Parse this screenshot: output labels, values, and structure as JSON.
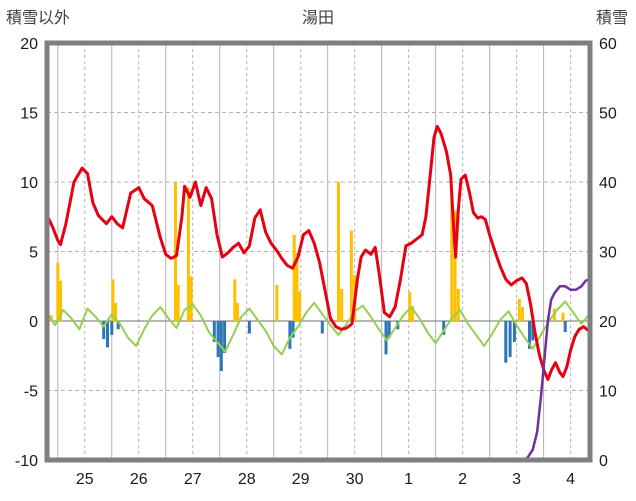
{
  "chart_data": {
    "type": "line",
    "title": "湯田",
    "left_axis": {
      "label": "積雪以外",
      "min": -10,
      "max": 20,
      "ticks": [
        20,
        15,
        10,
        5,
        0,
        -5,
        -10
      ]
    },
    "right_axis": {
      "label": "積雪",
      "min": 0,
      "max": 60,
      "ticks": [
        60,
        50,
        40,
        30,
        20,
        10,
        0
      ]
    },
    "x_axis": {
      "start": 24.8,
      "end": 34.86,
      "day_labels": [
        "25",
        "26",
        "27",
        "28",
        "29",
        "30",
        "1",
        "2",
        "3",
        "4"
      ],
      "label_positions": [
        25.5,
        26.5,
        27.5,
        28.5,
        29.5,
        30.5,
        31.5,
        32.5,
        33.5,
        34.5
      ]
    },
    "colors": {
      "red_line": "#e60012",
      "orange_bars": "#ffc000",
      "blue_bars": "#2e75b6",
      "green_line": "#92d050",
      "purple_line": "#7030a0",
      "frame": "#7f7f7f",
      "grid": "#b3b3b3",
      "zero_line": "#8c8c8c",
      "text": "#1a1a1a"
    },
    "series": [
      {
        "name": "orange_bars",
        "type": "bar",
        "axis": "left",
        "color": "#ffc000",
        "points": [
          [
            24.88,
            0.4
          ],
          [
            25.0,
            4.2
          ],
          [
            25.05,
            2.9
          ],
          [
            26.02,
            3.0
          ],
          [
            26.07,
            1.3
          ],
          [
            27.18,
            10.0
          ],
          [
            27.23,
            2.6
          ],
          [
            27.42,
            9.6
          ],
          [
            27.47,
            3.2
          ],
          [
            28.28,
            3.0
          ],
          [
            28.33,
            1.3
          ],
          [
            29.06,
            2.6
          ],
          [
            29.38,
            6.2
          ],
          [
            29.43,
            4.9
          ],
          [
            29.48,
            2.1
          ],
          [
            30.2,
            10.0
          ],
          [
            30.26,
            2.3
          ],
          [
            30.44,
            6.5
          ],
          [
            30.5,
            3.3
          ],
          [
            31.52,
            2.1
          ],
          [
            31.57,
            1.1
          ],
          [
            32.3,
            9.0
          ],
          [
            32.36,
            7.9
          ],
          [
            32.42,
            2.3
          ],
          [
            33.55,
            1.6
          ],
          [
            33.61,
            1.0
          ],
          [
            34.2,
            0.9
          ],
          [
            34.36,
            0.6
          ]
        ]
      },
      {
        "name": "blue_bars",
        "type": "bar",
        "axis": "left",
        "color": "#2e75b6",
        "points": [
          [
            25.85,
            -1.3
          ],
          [
            25.92,
            -1.9
          ],
          [
            26.0,
            -1.0
          ],
          [
            26.12,
            -0.6
          ],
          [
            27.9,
            -1.5
          ],
          [
            27.97,
            -2.6
          ],
          [
            28.03,
            -3.6
          ],
          [
            28.09,
            -2.3
          ],
          [
            28.55,
            -0.9
          ],
          [
            29.3,
            -2.0
          ],
          [
            29.36,
            -1.2
          ],
          [
            29.9,
            -0.9
          ],
          [
            31.08,
            -2.4
          ],
          [
            31.14,
            -1.2
          ],
          [
            31.3,
            -0.6
          ],
          [
            32.15,
            -1.0
          ],
          [
            33.3,
            -3.0
          ],
          [
            33.38,
            -2.6
          ],
          [
            33.46,
            -1.5
          ],
          [
            33.74,
            -2.0
          ],
          [
            33.8,
            -1.4
          ],
          [
            34.4,
            -0.8
          ]
        ]
      },
      {
        "name": "green_line",
        "type": "line",
        "axis": "left",
        "color": "#92d050",
        "width": 2,
        "points": [
          [
            24.8,
            0.6
          ],
          [
            24.95,
            -0.3
          ],
          [
            25.1,
            0.8
          ],
          [
            25.25,
            0.2
          ],
          [
            25.4,
            -0.6
          ],
          [
            25.55,
            0.9
          ],
          [
            25.7,
            0.3
          ],
          [
            25.85,
            -0.4
          ],
          [
            26.0,
            0.5
          ],
          [
            26.15,
            -0.2
          ],
          [
            26.3,
            -1.2
          ],
          [
            26.45,
            -1.8
          ],
          [
            26.6,
            -0.6
          ],
          [
            26.75,
            0.4
          ],
          [
            26.9,
            1.0
          ],
          [
            27.05,
            0.2
          ],
          [
            27.2,
            -0.5
          ],
          [
            27.35,
            0.8
          ],
          [
            27.5,
            1.2
          ],
          [
            27.65,
            0.4
          ],
          [
            27.8,
            -0.8
          ],
          [
            27.95,
            -1.5
          ],
          [
            28.1,
            -2.2
          ],
          [
            28.25,
            -1.0
          ],
          [
            28.4,
            0.3
          ],
          [
            28.55,
            0.9
          ],
          [
            28.7,
            0.1
          ],
          [
            28.85,
            -0.7
          ],
          [
            29.0,
            -1.8
          ],
          [
            29.15,
            -2.4
          ],
          [
            29.3,
            -1.2
          ],
          [
            29.45,
            -0.4
          ],
          [
            29.6,
            0.6
          ],
          [
            29.75,
            1.3
          ],
          [
            29.9,
            0.5
          ],
          [
            30.05,
            -0.3
          ],
          [
            30.2,
            -1.0
          ],
          [
            30.35,
            -0.2
          ],
          [
            30.5,
            0.7
          ],
          [
            30.65,
            1.1
          ],
          [
            30.8,
            0.3
          ],
          [
            30.95,
            -0.6
          ],
          [
            31.1,
            -1.4
          ],
          [
            31.25,
            -0.5
          ],
          [
            31.4,
            0.4
          ],
          [
            31.55,
            1.0
          ],
          [
            31.7,
            0.2
          ],
          [
            31.85,
            -0.8
          ],
          [
            32.0,
            -1.6
          ],
          [
            32.15,
            -0.7
          ],
          [
            32.3,
            0.2
          ],
          [
            32.45,
            0.8
          ],
          [
            32.6,
            -0.2
          ],
          [
            32.75,
            -1.0
          ],
          [
            32.9,
            -1.8
          ],
          [
            33.05,
            -0.9
          ],
          [
            33.2,
            0.1
          ],
          [
            33.35,
            0.7
          ],
          [
            33.5,
            -0.3
          ],
          [
            33.65,
            -1.2
          ],
          [
            33.8,
            -2.0
          ],
          [
            33.95,
            -1.0
          ],
          [
            34.1,
            0.0
          ],
          [
            34.25,
            0.8
          ],
          [
            34.4,
            1.4
          ],
          [
            34.55,
            0.6
          ],
          [
            34.7,
            -0.2
          ],
          [
            34.85,
            0.5
          ]
        ]
      },
      {
        "name": "red_line",
        "type": "line",
        "axis": "left",
        "color": "#e60012",
        "width": 3,
        "points": [
          [
            24.8,
            7.6
          ],
          [
            24.9,
            6.8
          ],
          [
            25.0,
            5.8
          ],
          [
            25.05,
            5.5
          ],
          [
            25.15,
            7.0
          ],
          [
            25.3,
            10.0
          ],
          [
            25.45,
            11.0
          ],
          [
            25.55,
            10.6
          ],
          [
            25.65,
            8.5
          ],
          [
            25.75,
            7.6
          ],
          [
            25.9,
            7.0
          ],
          [
            26.0,
            7.5
          ],
          [
            26.1,
            7.0
          ],
          [
            26.2,
            6.7
          ],
          [
            26.35,
            9.2
          ],
          [
            26.5,
            9.6
          ],
          [
            26.6,
            8.8
          ],
          [
            26.75,
            8.3
          ],
          [
            26.9,
            6.0
          ],
          [
            27.0,
            4.8
          ],
          [
            27.1,
            4.5
          ],
          [
            27.2,
            4.7
          ],
          [
            27.3,
            7.5
          ],
          [
            27.35,
            9.7
          ],
          [
            27.45,
            8.9
          ],
          [
            27.55,
            10.0
          ],
          [
            27.65,
            8.3
          ],
          [
            27.75,
            9.6
          ],
          [
            27.85,
            8.8
          ],
          [
            27.95,
            6.2
          ],
          [
            28.05,
            4.6
          ],
          [
            28.15,
            4.9
          ],
          [
            28.25,
            5.3
          ],
          [
            28.35,
            5.6
          ],
          [
            28.45,
            4.9
          ],
          [
            28.55,
            5.4
          ],
          [
            28.65,
            7.4
          ],
          [
            28.75,
            8.0
          ],
          [
            28.85,
            6.4
          ],
          [
            28.95,
            5.6
          ],
          [
            29.05,
            5.1
          ],
          [
            29.15,
            4.5
          ],
          [
            29.25,
            4.0
          ],
          [
            29.35,
            3.8
          ],
          [
            29.45,
            4.6
          ],
          [
            29.55,
            6.2
          ],
          [
            29.65,
            6.5
          ],
          [
            29.75,
            5.6
          ],
          [
            29.85,
            4.2
          ],
          [
            29.95,
            2.2
          ],
          [
            30.05,
            0.2
          ],
          [
            30.15,
            -0.4
          ],
          [
            30.25,
            -0.6
          ],
          [
            30.35,
            -0.5
          ],
          [
            30.45,
            -0.2
          ],
          [
            30.55,
            3.0
          ],
          [
            30.62,
            4.6
          ],
          [
            30.7,
            5.1
          ],
          [
            30.8,
            4.8
          ],
          [
            30.88,
            5.3
          ],
          [
            30.95,
            3.5
          ],
          [
            31.05,
            0.6
          ],
          [
            31.15,
            0.3
          ],
          [
            31.25,
            1.0
          ],
          [
            31.35,
            3.0
          ],
          [
            31.45,
            5.4
          ],
          [
            31.55,
            5.6
          ],
          [
            31.65,
            5.9
          ],
          [
            31.75,
            6.2
          ],
          [
            31.82,
            7.5
          ],
          [
            31.9,
            10.5
          ],
          [
            31.97,
            13.2
          ],
          [
            32.03,
            14.0
          ],
          [
            32.1,
            13.5
          ],
          [
            32.2,
            12.2
          ],
          [
            32.28,
            10.5
          ],
          [
            32.33,
            7.0
          ],
          [
            32.37,
            4.6
          ],
          [
            32.42,
            8.0
          ],
          [
            32.47,
            10.2
          ],
          [
            32.55,
            10.5
          ],
          [
            32.63,
            9.2
          ],
          [
            32.7,
            7.8
          ],
          [
            32.78,
            7.4
          ],
          [
            32.85,
            7.5
          ],
          [
            32.92,
            7.3
          ],
          [
            33.0,
            6.2
          ],
          [
            33.1,
            5.0
          ],
          [
            33.2,
            3.9
          ],
          [
            33.3,
            3.0
          ],
          [
            33.4,
            2.6
          ],
          [
            33.5,
            2.9
          ],
          [
            33.6,
            3.1
          ],
          [
            33.68,
            2.7
          ],
          [
            33.76,
            1.2
          ],
          [
            33.84,
            -0.8
          ],
          [
            33.92,
            -2.4
          ],
          [
            34.0,
            -3.5
          ],
          [
            34.08,
            -4.2
          ],
          [
            34.15,
            -3.5
          ],
          [
            34.22,
            -3.0
          ],
          [
            34.3,
            -3.7
          ],
          [
            34.36,
            -4.0
          ],
          [
            34.43,
            -3.3
          ],
          [
            34.5,
            -2.1
          ],
          [
            34.58,
            -1.1
          ],
          [
            34.66,
            -0.6
          ],
          [
            34.74,
            -0.4
          ],
          [
            34.8,
            -0.6
          ],
          [
            34.86,
            -0.8
          ]
        ]
      },
      {
        "name": "purple_line",
        "type": "line",
        "axis": "right",
        "color": "#7030a0",
        "width": 2.5,
        "points": [
          [
            24.8,
            0
          ],
          [
            33.6,
            0
          ],
          [
            33.7,
            0.3
          ],
          [
            33.8,
            1.5
          ],
          [
            33.88,
            4
          ],
          [
            33.95,
            9
          ],
          [
            34.02,
            15
          ],
          [
            34.08,
            20
          ],
          [
            34.14,
            23
          ],
          [
            34.2,
            24
          ],
          [
            34.3,
            25
          ],
          [
            34.4,
            25
          ],
          [
            34.5,
            24.5
          ],
          [
            34.6,
            24.5
          ],
          [
            34.7,
            25
          ],
          [
            34.78,
            25.8
          ],
          [
            34.86,
            26
          ]
        ]
      }
    ]
  }
}
